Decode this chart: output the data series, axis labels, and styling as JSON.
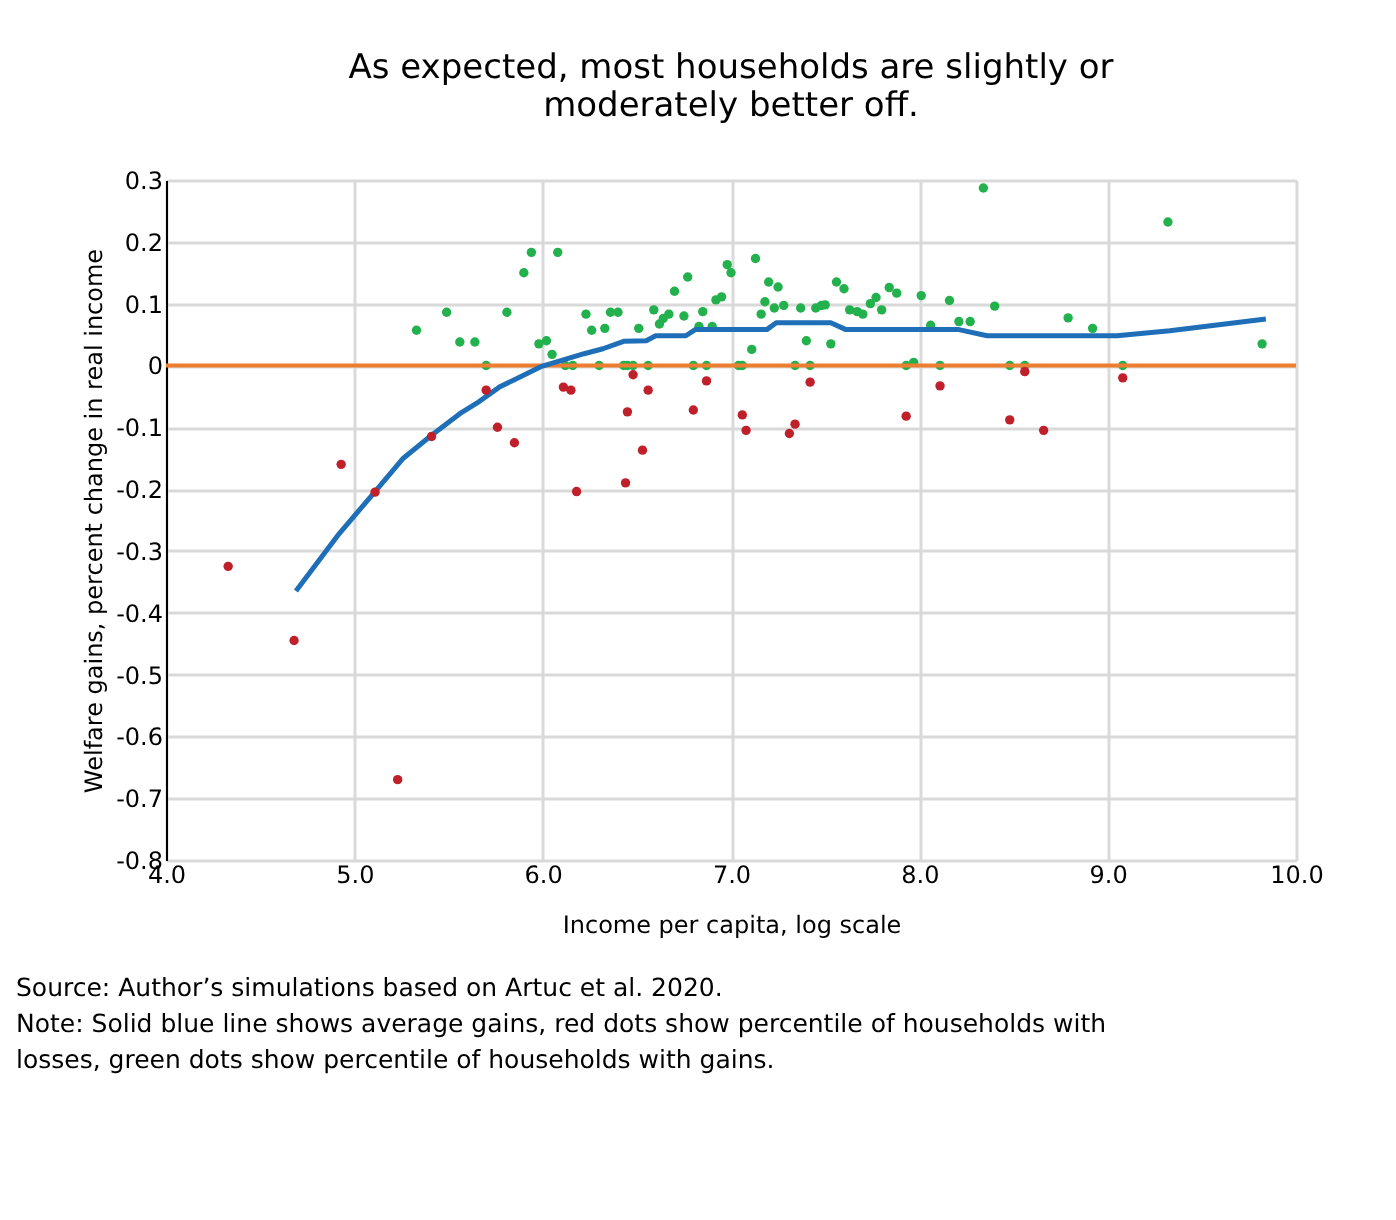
{
  "chart_data": {
    "type": "scatter",
    "title": "As expected, most households are slightly or moderately better off.",
    "xlabel": "Income per capita, log scale",
    "ylabel": "Welfare gains, percent change in real income",
    "xlim": [
      4,
      10
    ],
    "xticks": [
      {
        "value": 4,
        "label": "4.0"
      },
      {
        "value": 5,
        "label": "5.0"
      },
      {
        "value": 6,
        "label": "6.0"
      },
      {
        "value": 7,
        "label": "7.0"
      },
      {
        "value": 8,
        "label": "8.0"
      },
      {
        "value": 9,
        "label": "9.0"
      },
      {
        "value": 10,
        "label": "10.0"
      }
    ],
    "ylim": [
      -0.8,
      0.3
    ],
    "yticks": [
      -0.8,
      -0.7,
      -0.6,
      -0.5,
      -0.4,
      -0.3,
      -0.2,
      -0.1,
      0,
      0.1,
      0.2,
      0.3
    ],
    "grid": true,
    "marker": "circle",
    "ref_lines": [
      {
        "axis": "y",
        "value": 0,
        "color": "#ed7d31"
      }
    ],
    "series": [
      {
        "type": "scatter",
        "color": "#22b14c",
        "x": [
          5.33,
          5.49,
          5.56,
          5.64,
          5.7,
          5.81,
          5.9,
          5.94,
          5.98,
          6.02,
          6.05,
          6.08,
          6.12,
          6.16,
          6.23,
          6.26,
          6.3,
          6.33,
          6.36,
          6.4,
          6.43,
          6.45,
          6.48,
          6.51,
          6.56,
          6.59,
          6.62,
          6.64,
          6.67,
          6.7,
          6.75,
          6.77,
          6.8,
          6.83,
          6.85,
          6.87,
          6.9,
          6.92,
          6.95,
          6.98,
          7.0,
          7.04,
          7.06,
          7.11,
          7.13,
          7.16,
          7.18,
          7.2,
          7.23,
          7.25,
          7.28,
          7.34,
          7.37,
          7.4,
          7.42,
          7.45,
          7.48,
          7.5,
          7.53,
          7.56,
          7.6,
          7.63,
          7.67,
          7.7,
          7.74,
          7.77,
          7.8,
          7.84,
          7.88,
          7.93,
          7.97,
          8.01,
          8.06,
          8.11,
          8.16,
          8.21,
          8.27,
          8.34,
          8.4,
          8.48,
          8.56,
          8.79,
          8.92,
          9.08,
          9.32,
          9.82
        ],
        "values": [
          0.057,
          0.086,
          0.038,
          0.038,
          0.0,
          0.086,
          0.15,
          0.183,
          0.035,
          0.04,
          0.018,
          0.183,
          0.0,
          0.0,
          0.083,
          0.057,
          0.0,
          0.06,
          0.086,
          0.086,
          0.0,
          0.0,
          0.0,
          0.06,
          0.0,
          0.09,
          0.067,
          0.076,
          0.083,
          0.12,
          0.08,
          0.143,
          0.0,
          0.063,
          0.087,
          0.0,
          0.063,
          0.106,
          0.111,
          0.163,
          0.15,
          0.0,
          0.0,
          0.026,
          0.173,
          0.083,
          0.103,
          0.135,
          0.093,
          0.127,
          0.097,
          0.0,
          0.093,
          0.04,
          0.0,
          0.093,
          0.097,
          0.098,
          0.035,
          0.135,
          0.124,
          0.09,
          0.087,
          0.083,
          0.1,
          0.11,
          0.09,
          0.126,
          0.117,
          0.0,
          0.005,
          0.113,
          0.065,
          0.0,
          0.105,
          0.071,
          0.071,
          0.287,
          0.096,
          0.0,
          0.0,
          0.077,
          0.06,
          0.0,
          0.232,
          0.035
        ]
      },
      {
        "type": "scatter",
        "color": "#c0202a",
        "x": [
          4.33,
          4.68,
          4.93,
          5.11,
          5.23,
          5.41,
          5.7,
          5.76,
          5.85,
          6.11,
          6.15,
          6.18,
          6.44,
          6.45,
          6.48,
          6.53,
          6.56,
          6.8,
          6.87,
          7.06,
          7.08,
          7.31,
          7.34,
          7.42,
          7.93,
          8.11,
          8.48,
          8.56,
          8.66,
          9.08
        ],
        "values": [
          -0.325,
          -0.445,
          -0.16,
          -0.205,
          -0.67,
          -0.115,
          -0.04,
          -0.1,
          -0.125,
          -0.035,
          -0.04,
          -0.204,
          -0.19,
          -0.075,
          -0.015,
          -0.137,
          -0.04,
          -0.072,
          -0.025,
          -0.08,
          -0.105,
          -0.11,
          -0.095,
          -0.027,
          -0.082,
          -0.033,
          -0.088,
          -0.01,
          -0.105,
          -0.02
        ]
      },
      {
        "type": "line",
        "color": "#1f6fb8",
        "marker": "none",
        "x": [
          4.69,
          4.92,
          5.11,
          5.26,
          5.41,
          5.56,
          5.65,
          5.77,
          5.85,
          5.99,
          6.11,
          6.22,
          6.32,
          6.43,
          6.55,
          6.6,
          6.76,
          6.81,
          7.19,
          7.24,
          7.53,
          7.61,
          8.21,
          8.36,
          9.05,
          9.33,
          9.84
        ],
        "values": [
          -0.365,
          -0.272,
          -0.204,
          -0.15,
          -0.113,
          -0.078,
          -0.061,
          -0.035,
          -0.023,
          -0.002,
          0.009,
          0.019,
          0.027,
          0.039,
          0.04,
          0.048,
          0.048,
          0.058,
          0.058,
          0.069,
          0.069,
          0.058,
          0.058,
          0.048,
          0.048,
          0.056,
          0.075
        ]
      }
    ],
    "annotations": [
      "Source: Author’s simulations based on Artuc et al. 2020.",
      "Note: Solid blue line shows average gains, red dots show percentile of households with losses, green dots show percentile of households with gains."
    ]
  }
}
